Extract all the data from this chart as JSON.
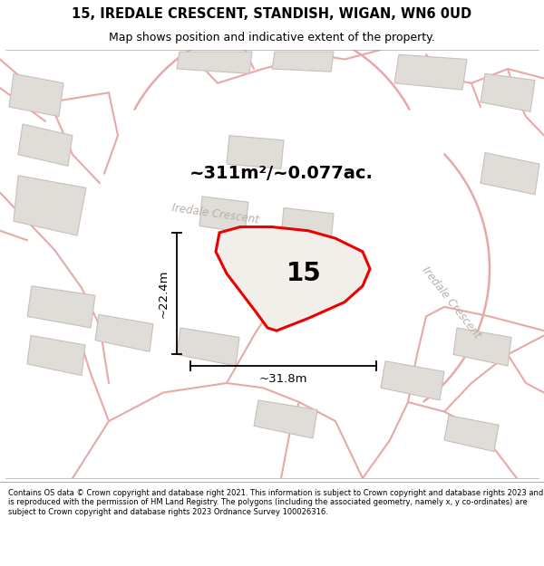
{
  "title_line1": "15, IREDALE CRESCENT, STANDISH, WIGAN, WN6 0UD",
  "title_line2": "Map shows position and indicative extent of the property.",
  "footer_text": "Contains OS data © Crown copyright and database right 2021. This information is subject to Crown copyright and database rights 2023 and is reproduced with the permission of HM Land Registry. The polygons (including the associated geometry, namely x, y co-ordinates) are subject to Crown copyright and database rights 2023 Ordnance Survey 100026316.",
  "area_label": "~311m²/~0.077ac.",
  "number_label": "15",
  "dim_width": "~31.8m",
  "dim_height": "~22.4m",
  "street_label1": "Iredale Crescent",
  "street_label2": "Iredale Crescent",
  "map_bg": "#f7f6f4",
  "road_color": "#e8a8a8",
  "building_fill": "#e0dcd8",
  "building_edge": "#c8c0b8",
  "red_outline": "#ee0000",
  "prop_fill": "#f0ece8",
  "title_fontsize": 10.5,
  "subtitle_fontsize": 9,
  "footer_fontsize": 6.0
}
